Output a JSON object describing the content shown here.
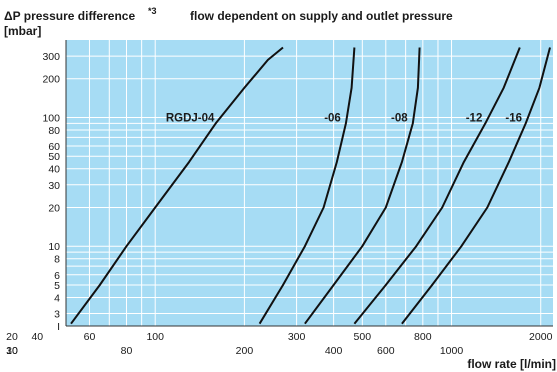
{
  "chart_data": {
    "type": "line",
    "title": "flow dependent on supply and outlet pressure",
    "ylabel_line1": "ΔP pressure difference",
    "ylabel_footnote": "*3",
    "ylabel_line2": "[mbar]",
    "xlabel": "flow rate [l/min]",
    "x_scale": "log",
    "y_scale": "log",
    "xlim": [
      50,
      2200
    ],
    "ylim": [
      2.4,
      400
    ],
    "grid": true,
    "background_color": "#a6dcf4",
    "grid_color": "#ffffff",
    "line_color": "#111111",
    "y_ticks": [
      {
        "v": 3,
        "t": "3"
      },
      {
        "v": 4,
        "t": "4"
      },
      {
        "v": 5,
        "t": "5"
      },
      {
        "v": 6,
        "t": "6"
      },
      {
        "v": 8,
        "t": "8"
      },
      {
        "v": 10,
        "t": "10"
      },
      {
        "v": 20,
        "t": "20"
      },
      {
        "v": 30,
        "t": "30"
      },
      {
        "v": 40,
        "t": "40"
      },
      {
        "v": 50,
        "t": "50"
      },
      {
        "v": 60,
        "t": "60"
      },
      {
        "v": 80,
        "t": "80"
      },
      {
        "v": 100,
        "t": "100"
      },
      {
        "v": 200,
        "t": "200"
      },
      {
        "v": 300,
        "t": "300"
      }
    ],
    "y_bottom_label": "I",
    "x_ticks_upper": [
      "20",
      "40",
      "60",
      "100",
      "300",
      "500",
      "800",
      "2000"
    ],
    "x_ticks_lower": [
      "10",
      "30",
      "80",
      "200",
      "400",
      "600",
      "1000"
    ],
    "series": [
      {
        "name": "RGDJ-04",
        "x": [
          52,
          65,
          80,
          100,
          130,
          160,
          200,
          240,
          270
        ],
        "y": [
          2.5,
          5,
          10,
          20,
          45,
          90,
          170,
          280,
          350
        ]
      },
      {
        "name": "-06",
        "x": [
          225,
          270,
          320,
          370,
          410,
          440,
          460,
          470
        ],
        "y": [
          2.5,
          5,
          10,
          20,
          45,
          90,
          170,
          350
        ]
      },
      {
        "name": "-08",
        "x": [
          320,
          400,
          500,
          600,
          680,
          740,
          770,
          780
        ],
        "y": [
          2.5,
          5,
          10,
          20,
          45,
          90,
          170,
          350
        ]
      },
      {
        "name": "-12",
        "x": [
          470,
          600,
          760,
          930,
          1100,
          1300,
          1500,
          1700
        ],
        "y": [
          2.5,
          5,
          10,
          20,
          45,
          90,
          170,
          350
        ]
      },
      {
        "name": "-16",
        "x": [
          680,
          860,
          1080,
          1320,
          1560,
          1780,
          1980,
          2150
        ],
        "y": [
          2.5,
          5,
          10,
          20,
          45,
          90,
          170,
          350
        ]
      }
    ]
  }
}
